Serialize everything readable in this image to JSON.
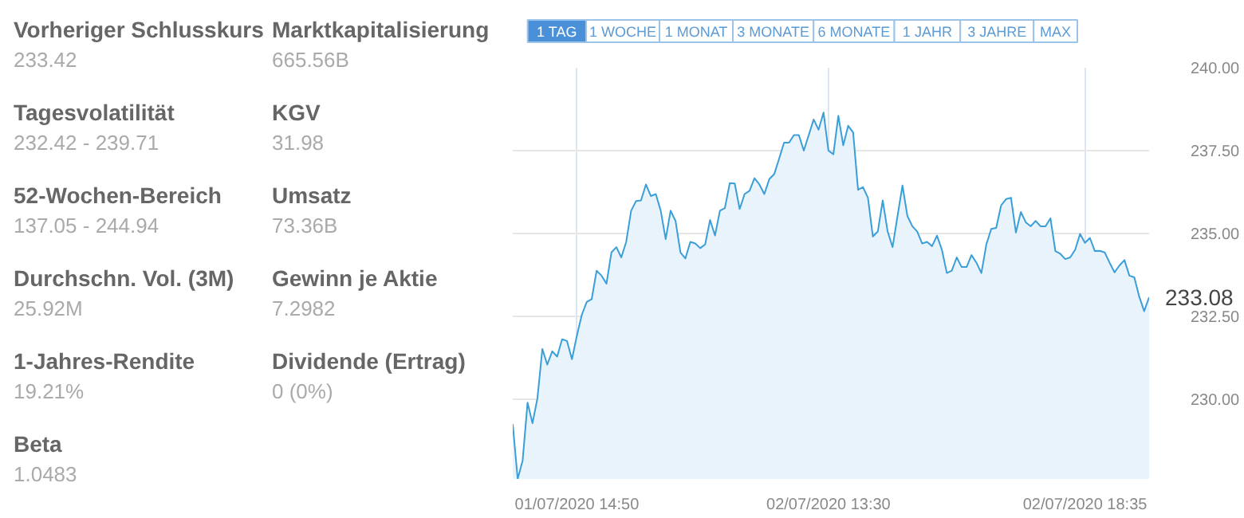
{
  "chart_data": [
    {
      "type": "other",
      "annotations": [
        "Vorheriger Schlusskurs",
        "233.42",
        "Marktkapitalisierung",
        "665.56B",
        "Tagesvolatilität",
        "232.42 - 239.71",
        "KGV",
        "31.98",
        "52-Wochen-Bereich",
        "137.05 - 244.94",
        "Umsatz",
        "73.36B",
        "Durchschn. Vol. (3M)",
        "25.92M",
        "Gewinn je Aktie",
        "7.2982",
        "1-Jahres-Rendite",
        "19.21%",
        "Dividende (Ertrag)",
        "0 (0%)",
        "Beta",
        "1.0483"
      ]
    },
    {
      "type": "area",
      "annotations": [
        "1 TAG",
        "1 WOCHE",
        "1 MONAT",
        "3 MONATE",
        "6 MONATE",
        "1 JAHR",
        "3 JAHRE",
        "MAX",
        "233.08"
      ],
      "categories": [
        null,
        null,
        null,
        null,
        null,
        null,
        null,
        null,
        null,
        null,
        null,
        null,
        null,
        "01/07/2020 14:50",
        null,
        null,
        null,
        null,
        null,
        null,
        null,
        null,
        null,
        null,
        null,
        null,
        null,
        null,
        null,
        null,
        null,
        null,
        null,
        null,
        null,
        null,
        null,
        null,
        null,
        null,
        null,
        null,
        null,
        null,
        null,
        null,
        null,
        null,
        null,
        null,
        null,
        null,
        null,
        null,
        null,
        null,
        null,
        null,
        null,
        null,
        null,
        null,
        null,
        null,
        "02/07/2020 13:30",
        null,
        null,
        null,
        null,
        null,
        null,
        null,
        null,
        null,
        null,
        null,
        null,
        null,
        null,
        null,
        null,
        null,
        null,
        null,
        null,
        null,
        null,
        null,
        null,
        null,
        null,
        null,
        null,
        null,
        null,
        null,
        null,
        null,
        null,
        null,
        null,
        null,
        null,
        null,
        null,
        null,
        null,
        null,
        null,
        null,
        null,
        null,
        null,
        null,
        null,
        null,
        "02/07/2020 18:35",
        null,
        null,
        null,
        null,
        null,
        null,
        null,
        null,
        null,
        null,
        null,
        null,
        null
      ],
      "values": [
        229.25,
        227.6,
        228.15,
        229.9,
        229.28,
        230.03,
        231.52,
        231.05,
        231.45,
        231.29,
        231.81,
        231.76,
        231.21,
        231.92,
        232.55,
        232.94,
        233.02,
        233.88,
        233.73,
        233.49,
        234.43,
        234.59,
        234.28,
        234.75,
        235.69,
        235.98,
        236.0,
        236.48,
        236.13,
        236.19,
        235.69,
        234.83,
        235.69,
        235.38,
        234.43,
        234.25,
        234.75,
        234.7,
        234.56,
        234.67,
        235.41,
        234.94,
        235.69,
        235.77,
        236.52,
        236.51,
        235.74,
        236.19,
        236.29,
        236.67,
        236.48,
        236.19,
        236.64,
        236.79,
        237.26,
        237.74,
        237.74,
        237.97,
        237.97,
        237.5,
        237.97,
        238.44,
        238.13,
        238.65,
        237.5,
        237.39,
        238.55,
        237.66,
        238.25,
        238.05,
        236.32,
        236.4,
        236.08,
        234.91,
        235.06,
        236.0,
        235.06,
        234.59,
        235.53,
        236.45,
        235.53,
        235.22,
        235.06,
        234.7,
        234.75,
        234.62,
        234.94,
        234.51,
        233.81,
        233.88,
        234.28,
        233.99,
        233.99,
        234.35,
        234.12,
        233.81,
        234.67,
        235.14,
        235.17,
        235.85,
        236.04,
        236.08,
        235.03,
        235.65,
        235.34,
        235.22,
        235.38,
        235.22,
        235.22,
        235.46,
        234.47,
        234.39,
        234.23,
        234.28,
        234.51,
        234.99,
        234.72,
        234.87,
        234.47,
        234.48,
        234.43,
        234.12,
        233.83,
        234.04,
        234.2,
        233.73,
        233.68,
        233.1,
        232.66,
        233.08
      ],
      "color": "#3a9fd9",
      "ylim": [
        227.6,
        240
      ],
      "yticks": [
        {
          "value": 230,
          "label": "230.00"
        },
        {
          "value": 232.5,
          "label": "232.50"
        },
        {
          "value": 235,
          "label": "235.00"
        },
        {
          "value": 237.5,
          "label": "237.50"
        },
        {
          "value": 240,
          "label": "240.00"
        }
      ],
      "grid": true
    }
  ]
}
